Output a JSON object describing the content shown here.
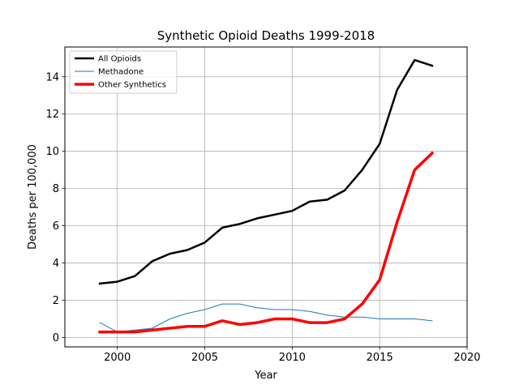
{
  "chart_data": {
    "type": "line",
    "title": "Synthetic Opioid Deaths 1999-2018",
    "xlabel": "Year",
    "ylabel": "Deaths per 100,000",
    "xlim": [
      1997,
      2020
    ],
    "ylim": [
      -0.5,
      15.6
    ],
    "xticks": [
      2000,
      2005,
      2010,
      2015,
      2020
    ],
    "yticks": [
      0,
      2,
      4,
      6,
      8,
      10,
      12,
      14
    ],
    "grid": true,
    "legend_position": "top-left",
    "x": [
      1999,
      2000,
      2001,
      2002,
      2003,
      2004,
      2005,
      2006,
      2007,
      2008,
      2009,
      2010,
      2011,
      2012,
      2013,
      2014,
      2015,
      2016,
      2017,
      2018
    ],
    "series": [
      {
        "name": "All Opioids",
        "color": "#000000",
        "values": [
          2.9,
          3.0,
          3.3,
          4.1,
          4.5,
          4.7,
          5.1,
          5.9,
          6.1,
          6.4,
          6.6,
          6.8,
          7.3,
          7.4,
          7.9,
          9.0,
          10.4,
          13.3,
          14.9,
          14.6
        ]
      },
      {
        "name": "Methadone",
        "color": "#1f77b4",
        "values": [
          0.8,
          0.3,
          0.4,
          0.5,
          1.0,
          1.3,
          1.5,
          1.8,
          1.8,
          1.6,
          1.5,
          1.5,
          1.4,
          1.2,
          1.1,
          1.1,
          1.0,
          1.0,
          1.0,
          0.9
        ]
      },
      {
        "name": "Other Synthetics",
        "color": "#ff0000",
        "values": [
          0.3,
          0.3,
          0.3,
          0.4,
          0.5,
          0.6,
          0.6,
          0.9,
          0.7,
          0.8,
          1.0,
          1.0,
          0.8,
          0.8,
          1.0,
          1.8,
          3.1,
          6.2,
          9.0,
          9.9
        ]
      }
    ]
  }
}
